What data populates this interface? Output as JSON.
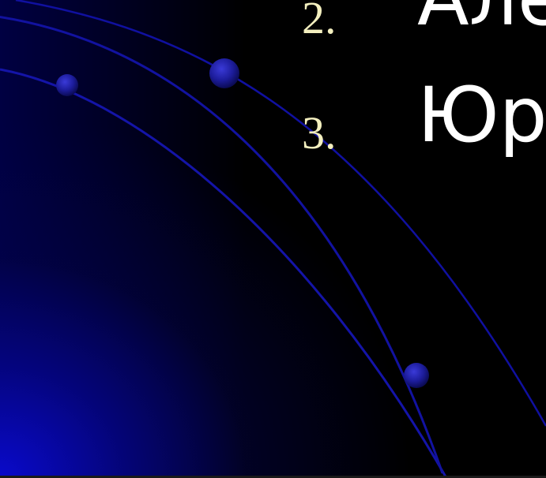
{
  "slide": {
    "background_color": "#000000",
    "accent_color": "#0a0ad2",
    "number_color": "#f3efbf",
    "text_color": "#ffffff"
  },
  "list": {
    "items": [
      {
        "number": "2.",
        "text": "Але"
      },
      {
        "number": "3.",
        "text": "Юр"
      }
    ]
  }
}
